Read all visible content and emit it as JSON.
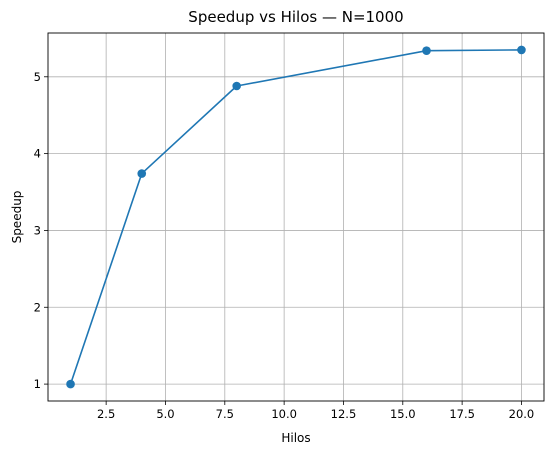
{
  "chart_data": {
    "type": "line",
    "title": "Speedup vs Hilos — N=1000",
    "xlabel": "Hilos",
    "ylabel": "Speedup",
    "xlim": [
      0.05,
      20.95
    ],
    "ylim": [
      0.78,
      5.57
    ],
    "xticks": [
      2.5,
      5.0,
      7.5,
      10.0,
      12.5,
      15.0,
      17.5,
      20.0
    ],
    "xtick_labels": [
      "2.5",
      "5.0",
      "7.5",
      "10.0",
      "12.5",
      "15.0",
      "17.5",
      "20.0"
    ],
    "yticks": [
      1,
      2,
      3,
      4,
      5
    ],
    "ytick_labels": [
      "1",
      "2",
      "3",
      "4",
      "5"
    ],
    "grid": true,
    "legend": false,
    "series": [
      {
        "color": "#1f77b4",
        "marker": "circle",
        "x": [
          1,
          4,
          8,
          16,
          20
        ],
        "y": [
          1.0,
          3.74,
          4.88,
          5.34,
          5.35
        ]
      }
    ]
  }
}
